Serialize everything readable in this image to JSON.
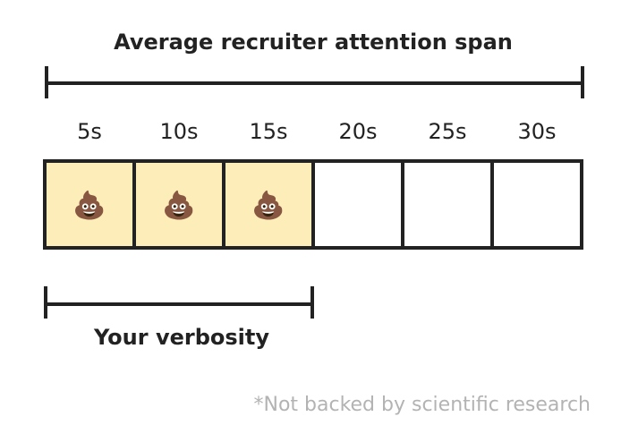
{
  "title": "Average recruiter attention span",
  "segments": [
    {
      "label": "5s",
      "filled": true,
      "icon": "poop-emoji-icon",
      "glyph": "💩"
    },
    {
      "label": "10s",
      "filled": true,
      "icon": "poop-emoji-icon",
      "glyph": "💩"
    },
    {
      "label": "15s",
      "filled": true,
      "icon": "poop-emoji-icon",
      "glyph": "💩"
    },
    {
      "label": "20s",
      "filled": false
    },
    {
      "label": "25s",
      "filled": false
    },
    {
      "label": "30s",
      "filled": false
    }
  ],
  "verbosity_label": "Your verbosity",
  "footnote": "*Not backed by scientific research",
  "colors": {
    "fill": "#fdedb8",
    "stroke": "#222222",
    "text": "#222222",
    "footnote": "#b3b3b3",
    "background": "#ffffff"
  }
}
